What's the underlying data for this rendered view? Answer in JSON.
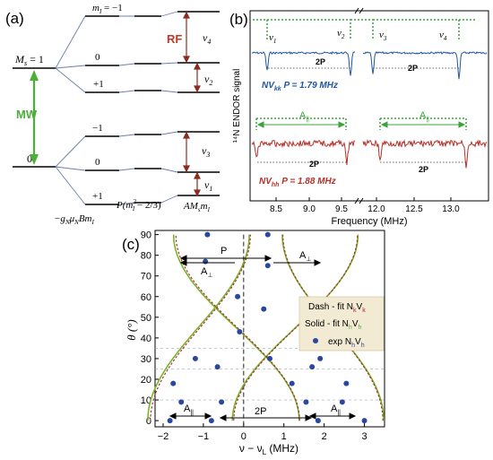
{
  "panel_a": {
    "label": "(a)",
    "ms1": "M",
    "ms1_sub": "s",
    "ms1_val": " = 1",
    "ms0": "0",
    "ml_top": "m",
    "ml_sub": "I",
    "ml_top_val": " = −1",
    "levels_upper": [
      "0",
      "+1"
    ],
    "levels_lower": [
      "−1",
      "0",
      "+1"
    ],
    "mw": "MW",
    "rf": "RF",
    "nu": [
      "ν",
      "ν",
      "ν",
      "ν"
    ],
    "nu_sub": [
      "4",
      "2",
      "3",
      "1"
    ],
    "axis_zeeman": "−g",
    "axis_zeeman_sub": "N",
    "axis_zeeman_mid": "μ",
    "axis_zeeman_sub2": "N",
    "axis_zeeman_end": "Bm",
    "axis_zeeman_sub3": "I",
    "axis_quad": "P(m",
    "axis_quad_sup": "2",
    "axis_quad_sub": "I",
    "axis_quad_end": " − 2/3)",
    "axis_hf": "AM",
    "axis_hf_sub": "s",
    "axis_hf_mid": "m",
    "axis_hf_sub2": "I",
    "colors": {
      "mw": "#4caf3a",
      "rf": "#c0392b",
      "arrow": "#8b2c1f"
    }
  },
  "panel_b": {
    "label": "(b)",
    "ylabel": "¹⁴N ENDOR signal",
    "xlabel": "Frequency (MHz)",
    "xticks": [
      "8.5",
      "9.0",
      "9.5",
      "12.0",
      "12.5",
      "13.0"
    ],
    "nu_labels": [
      "ν",
      "ν",
      "ν",
      "ν"
    ],
    "nu_subs": [
      "1",
      "2",
      "3",
      "4"
    ],
    "twoP": [
      "2P",
      "2P",
      "2P",
      "2P"
    ],
    "A_par": [
      "A",
      "A"
    ],
    "A_par_sub": "||",
    "kk_label": "NV",
    "kk_sub": "kk",
    "kk_rest": " P = 1.79 MHz",
    "hh_label": "NV",
    "hh_sub": "hh",
    "hh_rest": " P = 1.88 MHz",
    "colors": {
      "blue": "#2255a4",
      "red": "#b53028",
      "green": "#3aa53a"
    }
  },
  "panel_c": {
    "label": "(c)",
    "ylabel": "θ (°)",
    "xlabel": "ν − ν",
    "xlabel_sub": "L",
    "xlabel_end": " (MHz)",
    "yticks": [
      "0",
      "10",
      "20",
      "30",
      "40",
      "50",
      "60",
      "70",
      "80",
      "90"
    ],
    "xticks": [
      "−2",
      "−1",
      "0",
      "1",
      "2",
      "3"
    ],
    "P": "P",
    "A_perp": [
      "A",
      "A"
    ],
    "A_perp_sub": "⊥",
    "A_par": [
      "A",
      "A"
    ],
    "A_par_sub": "||",
    "twoP": "2P",
    "legend": {
      "dash": "Dash - fit N",
      "dash_sub1": "k",
      "dash_mid": "V",
      "dash_sub2": "k",
      "solid": "Solid - fit N",
      "solid_sub1": "h",
      "solid_mid": "V",
      "solid_sub2": "h",
      "exp": "exp N",
      "exp_sub1": "h",
      "exp_mid": "V",
      "exp_sub2": "h"
    },
    "colors": {
      "solid": "#7cb32b",
      "dash": "#a5282f",
      "dot": "#2a47a0",
      "legend_bg": "#f3ead3"
    }
  },
  "chart_data": {
    "type": "scatter",
    "x": [
      -1.83,
      -1.55,
      -0.8,
      -0.55,
      1.85,
      1.55,
      2.45,
      3.0,
      -1.75,
      -1.2,
      -0.65,
      -0.1,
      0.65,
      1.2,
      1.7,
      1.9,
      2.55,
      1.55,
      0.6,
      -0.15,
      0.5,
      -0.95,
      -0.9,
      0.6
    ],
    "y": [
      0,
      9,
      0,
      9,
      0,
      9,
      9,
      0,
      18,
      30,
      26,
      43,
      30,
      18,
      26,
      30,
      18,
      43,
      75,
      60,
      54,
      77,
      90,
      90
    ],
    "xlim": [
      -2.2,
      3.5
    ],
    "ylim": [
      -3,
      92
    ]
  }
}
